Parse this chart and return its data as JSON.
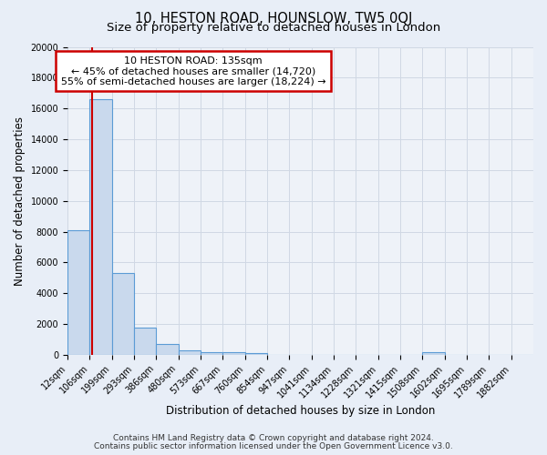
{
  "title": "10, HESTON ROAD, HOUNSLOW, TW5 0QJ",
  "subtitle": "Size of property relative to detached houses in London",
  "xlabel": "Distribution of detached houses by size in London",
  "ylabel": "Number of detached properties",
  "footer_line1": "Contains HM Land Registry data © Crown copyright and database right 2024.",
  "footer_line2": "Contains public sector information licensed under the Open Government Licence v3.0.",
  "bin_labels": [
    "12sqm",
    "106sqm",
    "199sqm",
    "293sqm",
    "386sqm",
    "480sqm",
    "573sqm",
    "667sqm",
    "760sqm",
    "854sqm",
    "947sqm",
    "1041sqm",
    "1134sqm",
    "1228sqm",
    "1321sqm",
    "1415sqm",
    "1508sqm",
    "1602sqm",
    "1695sqm",
    "1789sqm",
    "1882sqm"
  ],
  "bar_heights": [
    8100,
    16600,
    5300,
    1750,
    700,
    300,
    200,
    150,
    100,
    0,
    0,
    0,
    0,
    0,
    0,
    0,
    150,
    0,
    0,
    0,
    0
  ],
  "bar_color": "#c9d9ed",
  "bar_edge_color": "#5b9bd5",
  "annotation_line1": "10 HESTON ROAD: 135sqm",
  "annotation_line2": "← 45% of detached houses are smaller (14,720)",
  "annotation_line3": "55% of semi-detached houses are larger (18,224) →",
  "annotation_box_facecolor": "#ffffff",
  "annotation_box_edgecolor": "#cc0000",
  "red_line_color": "#cc0000",
  "ylim": [
    0,
    20000
  ],
  "yticks": [
    0,
    2000,
    4000,
    6000,
    8000,
    10000,
    12000,
    14000,
    16000,
    18000,
    20000
  ],
  "background_color": "#e8eef7",
  "grid_color": "#d0d8e4",
  "plot_bg_color": "#eef2f8",
  "title_fontsize": 10.5,
  "subtitle_fontsize": 9.5,
  "axis_label_fontsize": 8.5,
  "tick_fontsize": 7,
  "annotation_fontsize": 8,
  "footer_fontsize": 6.5
}
